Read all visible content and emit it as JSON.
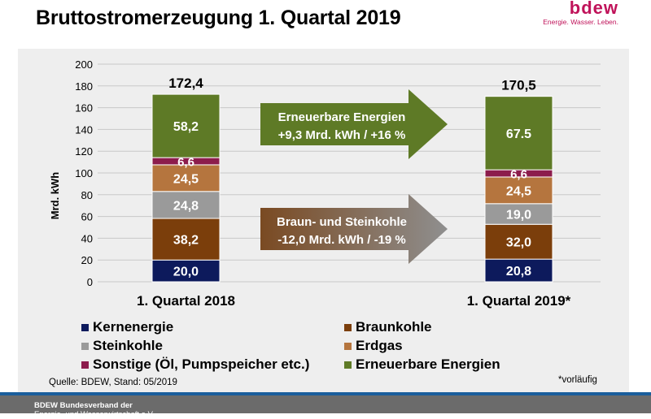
{
  "header": {
    "title": "Bruttostromerzeugung 1. Quartal 2019",
    "logo_word": "bdew",
    "logo_tagline": "Energie. Wasser. Leben."
  },
  "chart_data": {
    "type": "bar",
    "stacked": true,
    "ylabel": "Mrd. kWh",
    "ylim": [
      0,
      200
    ],
    "yticks": [
      0,
      20,
      40,
      60,
      80,
      100,
      120,
      140,
      160,
      180,
      200
    ],
    "categories": [
      "1. Quartal 2018",
      "1. Quartal 2019*"
    ],
    "totals": [
      "172,4",
      "170,5"
    ],
    "grid": true,
    "series": [
      {
        "name": "Kernenergie",
        "color": "#0d1a5c",
        "values": [
          20.0,
          20.8
        ],
        "labels": [
          "20,0",
          "20,8"
        ]
      },
      {
        "name": "Braunkohle",
        "color": "#7b3e0b",
        "values": [
          38.2,
          32.0
        ],
        "labels": [
          "38,2",
          "32,0"
        ]
      },
      {
        "name": "Steinkohle",
        "color": "#9a9a9a",
        "values": [
          24.8,
          19.0
        ],
        "labels": [
          "24,8",
          "19,0"
        ]
      },
      {
        "name": "Erdgas",
        "color": "#b5753e",
        "values": [
          24.5,
          24.5
        ],
        "labels": [
          "24,5",
          "24,5"
        ]
      },
      {
        "name": "Sonstige (Öl, Pumpspeicher etc.)",
        "color": "#8c1c4c",
        "values": [
          6.6,
          6.6
        ],
        "labels": [
          "6,6",
          "6,6"
        ]
      },
      {
        "name": "Erneuerbare Energien",
        "color": "#5e7a26",
        "values": [
          58.2,
          67.5
        ],
        "labels": [
          "58,2",
          "67.5"
        ]
      }
    ],
    "annotations": [
      {
        "lines": [
          "Erneuerbare Energien",
          "+9,3 Mrd. kWh / +16 %"
        ],
        "color": "#5e7a26"
      },
      {
        "lines": [
          "Braun- und Steinkohle",
          "-12,0 Mrd. kWh / -19 %"
        ],
        "color": "#8a5a35"
      }
    ]
  },
  "legend_order": [
    0,
    1,
    2,
    3,
    4,
    5
  ],
  "footer": {
    "source": "Quelle: BDEW, Stand: 05/2019",
    "note": "*vorläufig",
    "org_line1": "BDEW Bundesverband der",
    "org_line2": "Energie- und Wasserwirtschaft e.V."
  }
}
